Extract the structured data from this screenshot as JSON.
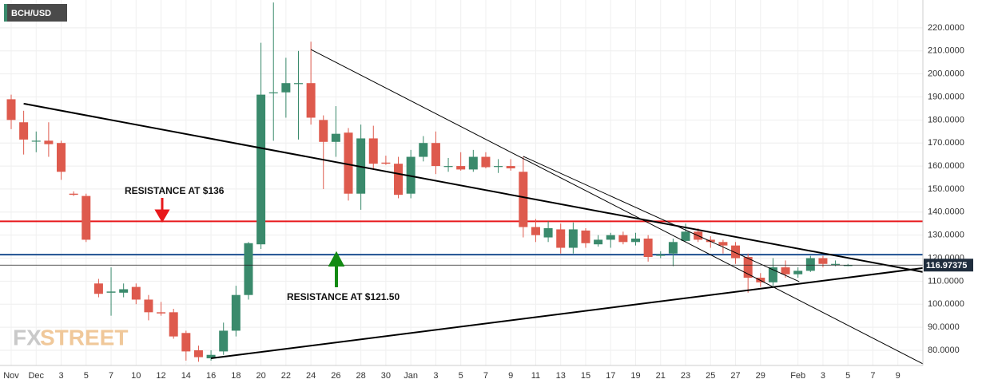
{
  "chart_data": {
    "type": "candlestick",
    "title": "BCH/USD",
    "categories": [
      "Nov",
      null,
      "Dec",
      null,
      "3",
      null,
      "5",
      null,
      "7",
      null,
      "10",
      null,
      "12",
      null,
      "14",
      null,
      "16",
      null,
      "18",
      null,
      "20",
      null,
      "22",
      null,
      "24",
      null,
      "26",
      null,
      "28",
      null,
      "30",
      null,
      "Jan",
      null,
      "3",
      null,
      "5",
      null,
      "7",
      null,
      "9",
      null,
      "11",
      null,
      "13",
      null,
      "15",
      null,
      "17",
      null,
      "19",
      null,
      "21",
      null,
      "23",
      null,
      "25",
      null,
      "27",
      null,
      "29",
      null,
      null,
      "Feb",
      null,
      "3",
      null,
      "5",
      null,
      "7",
      null,
      "9",
      null
    ],
    "open": [
      189,
      179,
      171,
      171,
      170,
      148,
      147,
      109,
      105,
      105,
      107.5,
      102,
      96.5,
      96.5,
      87.5,
      80,
      76.5,
      79.5,
      88.5,
      104,
      126,
      192,
      192,
      196,
      196,
      180,
      170.5,
      174.5,
      148,
      172,
      161.5,
      161,
      148,
      164,
      170,
      160,
      160,
      158.5,
      164,
      160,
      160,
      157.5,
      133.5,
      129,
      132.5,
      124.5,
      132,
      126,
      128,
      130,
      127,
      128.5,
      121,
      122,
      127.5,
      131.5,
      128,
      127,
      125.5,
      120.5,
      111.5,
      109.5,
      116,
      113,
      114.5,
      120,
      117.5,
      117,
      null,
      null,
      null,
      null,
      null
    ],
    "high": [
      191,
      184,
      175,
      179,
      171,
      149,
      148,
      111,
      116,
      109,
      109,
      104,
      101,
      98,
      88.5,
      82,
      80,
      92,
      108,
      127,
      213.5,
      231,
      207,
      210,
      214,
      182,
      186,
      176.5,
      178,
      177.5,
      164.5,
      164,
      167,
      173,
      175,
      163.5,
      166,
      167,
      166,
      163,
      163,
      164,
      137,
      136,
      135,
      135.5,
      133,
      130,
      131,
      131.5,
      131,
      130,
      123,
      128.5,
      135,
      133,
      129.5,
      128,
      127,
      122,
      113.5,
      120,
      119,
      116,
      121,
      121,
      119,
      117.5,
      null,
      null,
      null,
      null,
      null
    ],
    "low": [
      176,
      165,
      166,
      164,
      154,
      147,
      127,
      103,
      95,
      103,
      100,
      93,
      95,
      85,
      75.5,
      75,
      75.5,
      78,
      86,
      102,
      124,
      171,
      181,
      171.5,
      178,
      150,
      164,
      145,
      141,
      159,
      160.5,
      146,
      146,
      162,
      156.5,
      157.5,
      158,
      157.5,
      159,
      157,
      158,
      129,
      127,
      127,
      122,
      122,
      124.5,
      125,
      124.5,
      126,
      125.5,
      118.5,
      120,
      116.5,
      127,
      127,
      124.5,
      122,
      117.5,
      105,
      107.5,
      108,
      111.5,
      111.5,
      114,
      116,
      116.5,
      116.5,
      null,
      null,
      null,
      null,
      null
    ],
    "close": [
      180,
      171.5,
      171,
      169.5,
      157.5,
      147.5,
      128,
      104.5,
      105.5,
      106.5,
      102,
      96.5,
      96,
      86,
      79.5,
      77,
      78,
      88.5,
      104,
      126.5,
      191,
      192,
      196,
      196,
      181,
      170.5,
      174,
      148,
      172,
      161,
      161,
      147.5,
      164,
      170,
      160,
      160,
      158.5,
      164,
      159.5,
      160,
      159,
      133.5,
      130,
      133,
      124.5,
      132.5,
      126.5,
      128,
      130,
      127,
      128.5,
      120.5,
      121.5,
      127,
      131.5,
      128,
      127,
      125.5,
      120,
      111.5,
      109.5,
      116,
      113,
      114.5,
      120,
      117.5,
      117.5,
      117,
      null,
      null,
      null,
      null,
      null
    ],
    "up_color": "#3a8a6c",
    "down_color": "#de5a4d",
    "ylim": [
      73.4,
      232.1
    ],
    "yticks": [
      {
        "value": 80,
        "label": "80.0000"
      },
      {
        "value": 90,
        "label": "90.0000"
      },
      {
        "value": 100,
        "label": "100.0000"
      },
      {
        "value": 110,
        "label": "110.0000"
      },
      {
        "value": 120,
        "label": "120.0000"
      },
      {
        "value": 130,
        "label": "130.0000"
      },
      {
        "value": 140,
        "label": "140.0000"
      },
      {
        "value": 150,
        "label": "150.0000"
      },
      {
        "value": 160,
        "label": "160.0000"
      },
      {
        "value": 170,
        "label": "170.0000"
      },
      {
        "value": 180,
        "label": "180.0000"
      },
      {
        "value": 190,
        "label": "190.0000"
      },
      {
        "value": 200,
        "label": "200.0000"
      },
      {
        "value": 210,
        "label": "210.0000"
      },
      {
        "value": 220,
        "label": "220.0000"
      }
    ],
    "grid": true,
    "levels": [
      {
        "value": 136,
        "color": "#e8181b"
      },
      {
        "value": 121.5,
        "color": "#1d4f91"
      }
    ],
    "last_price": 116.97375,
    "trendlines": [
      {
        "x": [
          1,
          73
        ],
        "y": [
          187.1,
          114
        ],
        "width": 2
      },
      {
        "x": [
          16,
          73
        ],
        "y": [
          76.5,
          115.7
        ],
        "width": 2
      },
      {
        "x": [
          24,
          73
        ],
        "y": [
          210.6,
          74.1
        ],
        "width": 1
      },
      {
        "x": [
          41,
          63.1
        ],
        "y": [
          164.2,
          109.8
        ],
        "width": 1
      }
    ],
    "annotations": [
      "RESISTANCE AT $136",
      "RESISTANCE AT $121.50"
    ],
    "watermark": [
      "FX",
      "STREET"
    ]
  }
}
